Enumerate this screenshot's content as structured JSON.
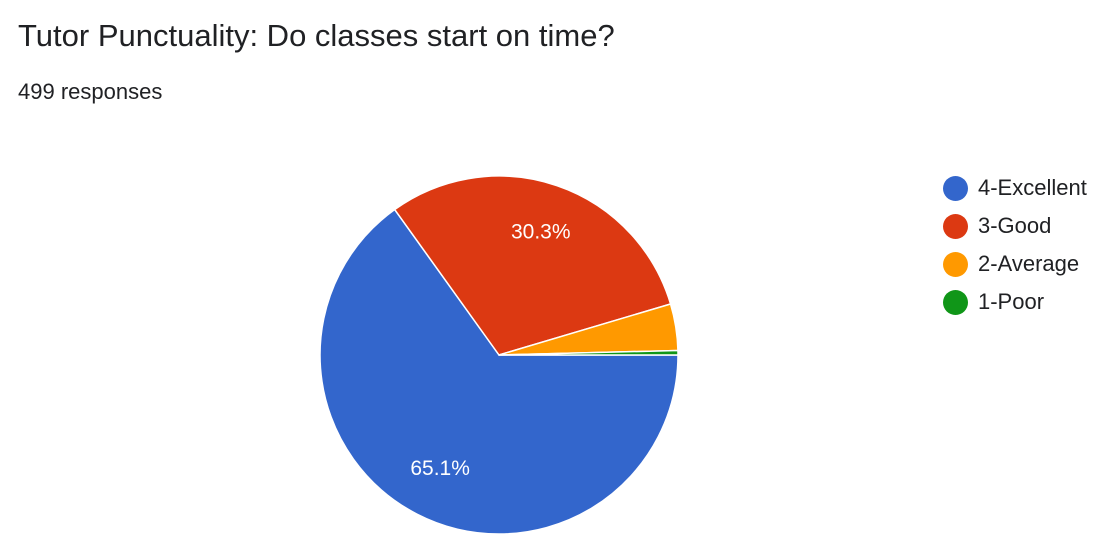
{
  "title": "Tutor Punctuality: Do classes start on time?",
  "subtitle": "499 responses",
  "chart_data": {
    "type": "pie",
    "labels": [
      "4-Excellent",
      "3-Good",
      "2-Average",
      "1-Poor"
    ],
    "values": [
      65.1,
      30.3,
      4.2,
      0.4
    ],
    "value_unit": "percent",
    "colors": [
      "#3366cc",
      "#dc3912",
      "#ff9900",
      "#109618"
    ],
    "data_labels": [
      "65.1%",
      "30.3%",
      "",
      ""
    ],
    "legend_position": "right",
    "start_angle": "3 o'clock",
    "direction": "clockwise"
  }
}
